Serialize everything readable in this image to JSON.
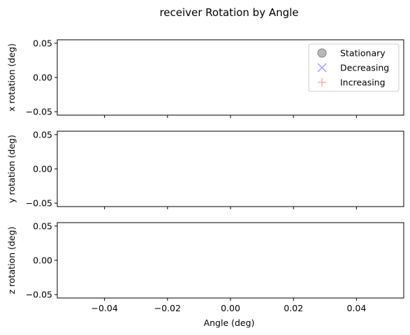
{
  "chart_data": {
    "type": "scatter",
    "title": "receiver Rotation by Angle",
    "xlabel": "Angle (deg)",
    "xlim": [
      -0.055,
      0.055
    ],
    "xticks": [
      -0.04,
      -0.02,
      0.0,
      0.02,
      0.04
    ],
    "xtick_labels": [
      "−0.04",
      "−0.02",
      "0.00",
      "0.02",
      "0.04"
    ],
    "grid": false,
    "legend": {
      "placement": "top-right",
      "entries": [
        {
          "name": "Stationary",
          "marker": "circle",
          "color": "#808080"
        },
        {
          "name": "Decreasing",
          "marker": "x",
          "color": "#a0a0ff"
        },
        {
          "name": "Increasing",
          "marker": "plus",
          "color": "#ffaaaa"
        }
      ]
    },
    "subplots": [
      {
        "ylabel": "x rotation (deg)",
        "ylim": [
          -0.055,
          0.055
        ],
        "yticks": [
          -0.05,
          0.0,
          0.05
        ],
        "ytick_labels": [
          "−0.05",
          "0.00",
          "0.05"
        ],
        "series": []
      },
      {
        "ylabel": "y rotation (deg)",
        "ylim": [
          -0.055,
          0.055
        ],
        "yticks": [
          -0.05,
          0.0,
          0.05
        ],
        "ytick_labels": [
          "−0.05",
          "0.00",
          "0.05"
        ],
        "series": []
      },
      {
        "ylabel": "z rotation (deg)",
        "ylim": [
          -0.055,
          0.055
        ],
        "yticks": [
          -0.05,
          0.0,
          0.05
        ],
        "ytick_labels": [
          "−0.05",
          "0.00",
          "0.05"
        ],
        "series": []
      }
    ]
  }
}
